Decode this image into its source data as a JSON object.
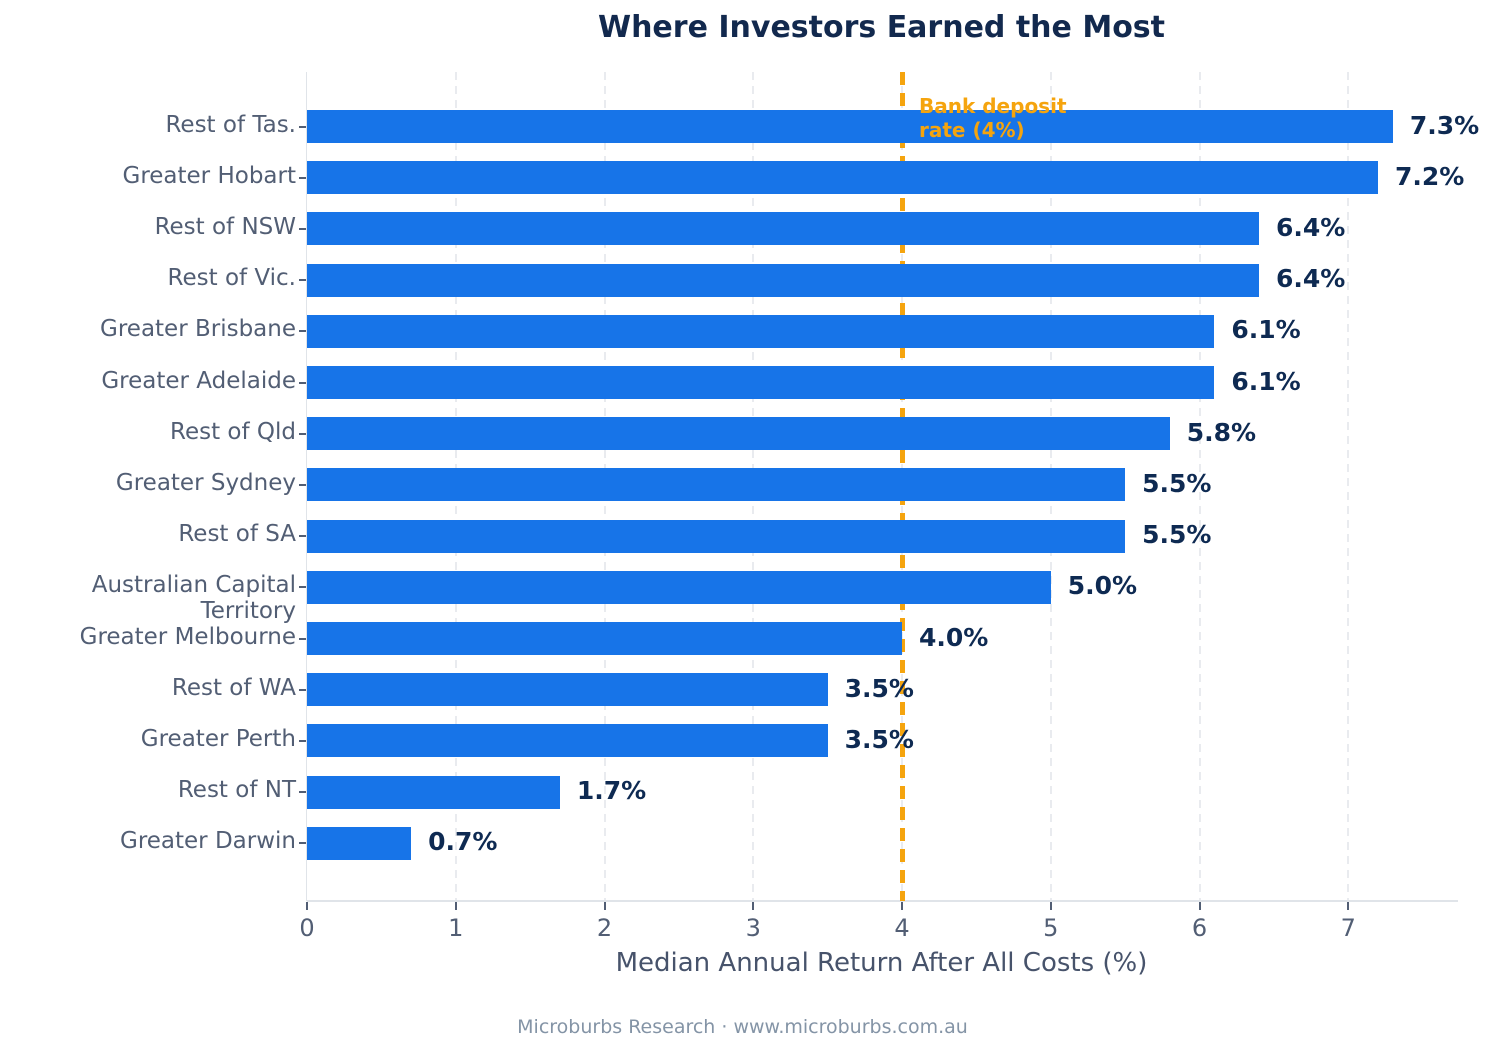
{
  "page": {
    "title": "Where Investors Earned the Most",
    "footer": "Microburbs Research · www.microburbs.com.au"
  },
  "chart_data": {
    "type": "bar",
    "orientation": "horizontal",
    "title": "Where Investors Earned the Most",
    "xlabel": "Median Annual Return After All Costs (%)",
    "categories": [
      "Rest of Tas.",
      "Greater Hobart",
      "Rest of NSW",
      "Rest of Vic.",
      "Greater Brisbane",
      "Greater Adelaide",
      "Rest of Qld",
      "Greater Sydney",
      "Rest of SA",
      "Australian Capital Territory",
      "Greater Melbourne",
      "Rest of WA",
      "Greater Perth",
      "Rest of NT",
      "Greater Darwin"
    ],
    "values": [
      7.3,
      7.2,
      6.4,
      6.4,
      6.1,
      6.1,
      5.8,
      5.5,
      5.5,
      5.0,
      4.0,
      3.5,
      3.5,
      1.7,
      0.7
    ],
    "value_labels": [
      "7.3%",
      "7.2%",
      "6.4%",
      "6.4%",
      "6.1%",
      "6.1%",
      "5.8%",
      "5.5%",
      "5.5%",
      "5.0%",
      "4.0%",
      "3.5%",
      "3.5%",
      "1.7%",
      "0.7%"
    ],
    "xticks": [
      "0",
      "1",
      "2",
      "3",
      "4",
      "5",
      "6",
      "7"
    ],
    "xlim": [
      0,
      7.73
    ],
    "grid": "vertical-dashed",
    "legend": "none",
    "reference_line": {
      "value": 4,
      "label_lines": [
        "Bank deposit",
        "rate (4%)"
      ],
      "style": "dashed"
    },
    "colors": {
      "bar": "#1774E8",
      "value_label": "#0E2A52",
      "title": "#12294E",
      "axis_text": "#525E74",
      "xlabel_text": "#47536B",
      "footer_text": "#8494A6",
      "grid": "#E9EBEF",
      "spine": "#E0E4E9",
      "reference": "#F5A40E"
    }
  }
}
